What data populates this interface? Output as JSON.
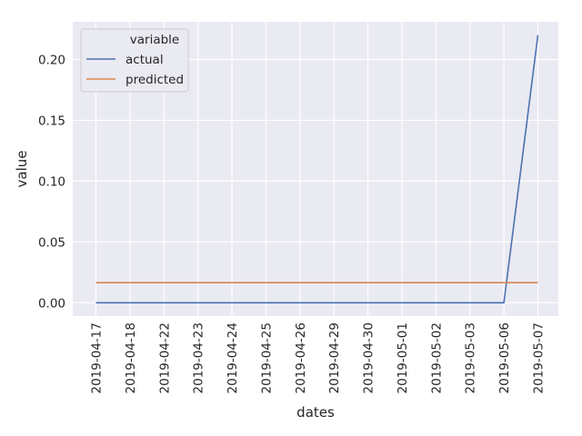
{
  "chart_data": {
    "type": "line",
    "xlabel": "dates",
    "ylabel": "value",
    "x": [
      "2019-04-17",
      "2019-04-18",
      "2019-04-22",
      "2019-04-23",
      "2019-04-24",
      "2019-04-25",
      "2019-04-26",
      "2019-04-29",
      "2019-04-30",
      "2019-05-01",
      "2019-05-02",
      "2019-05-03",
      "2019-05-06",
      "2019-05-07"
    ],
    "series": [
      {
        "name": "actual",
        "color": "#4c72b0",
        "values": [
          0,
          0,
          0,
          0,
          0,
          0,
          0,
          0,
          0,
          0,
          0,
          0,
          0,
          0.22
        ]
      },
      {
        "name": "predicted",
        "color": "#dd8452",
        "values": [
          0.0165,
          0.0165,
          0.0165,
          0.0165,
          0.0165,
          0.0165,
          0.0165,
          0.0165,
          0.0165,
          0.0165,
          0.0165,
          0.0165,
          0.0165,
          0.0165
        ]
      }
    ],
    "ylim": [
      -0.011,
      0.231
    ],
    "yticks": [
      0.0,
      0.05,
      0.1,
      0.15,
      0.2
    ],
    "ytick_labels": [
      "0.00",
      "0.05",
      "0.10",
      "0.15",
      "0.20"
    ],
    "grid": true,
    "plot_background": "#eaeaf2",
    "grid_color": "#ffffff",
    "legend": {
      "title": "variable",
      "placement": "top-left"
    }
  }
}
